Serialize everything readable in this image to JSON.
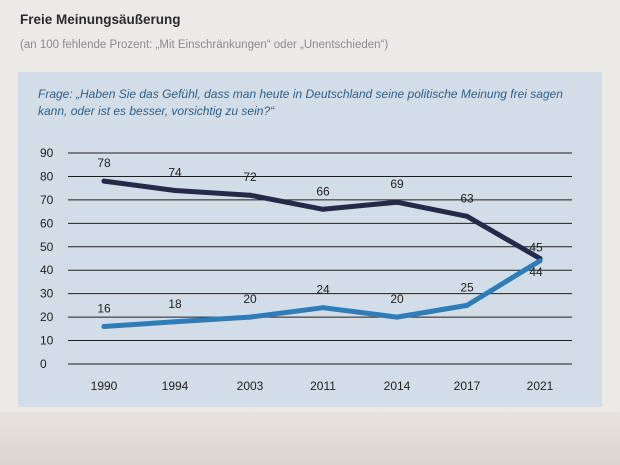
{
  "page": {
    "title": "Freie Meinungsäußerung",
    "subtitle": "(an 100 fehlende Prozent: „Mit Einschränkungen“ oder „Unentschieden“)"
  },
  "chart_data": {
    "type": "line",
    "title": "Frage: „Haben Sie das Gefühl, dass man heute in Deutschland seine politische Meinung frei sagen kann, oder ist es besser, vorsichtig zu sein?“",
    "categories": [
      "1990",
      "1994",
      "2003",
      "2011",
      "2014",
      "2017",
      "2021"
    ],
    "series": [
      {
        "values": [
          78,
          74,
          72,
          66,
          69,
          63,
          45
        ],
        "labels": [
          "78",
          "74",
          "72",
          "66",
          "69",
          "63",
          "45"
        ],
        "color": "#262a4a"
      },
      {
        "values": [
          16,
          18,
          20,
          24,
          20,
          25,
          44
        ],
        "labels": [
          "16",
          "18",
          "20",
          "24",
          "20",
          "25",
          "44"
        ],
        "color": "#2e7cb8"
      }
    ],
    "yticks": [
      0,
      10,
      20,
      30,
      40,
      50,
      60,
      70,
      80,
      90
    ],
    "ylim": [
      0,
      90
    ],
    "grid": true,
    "legend": false
  }
}
